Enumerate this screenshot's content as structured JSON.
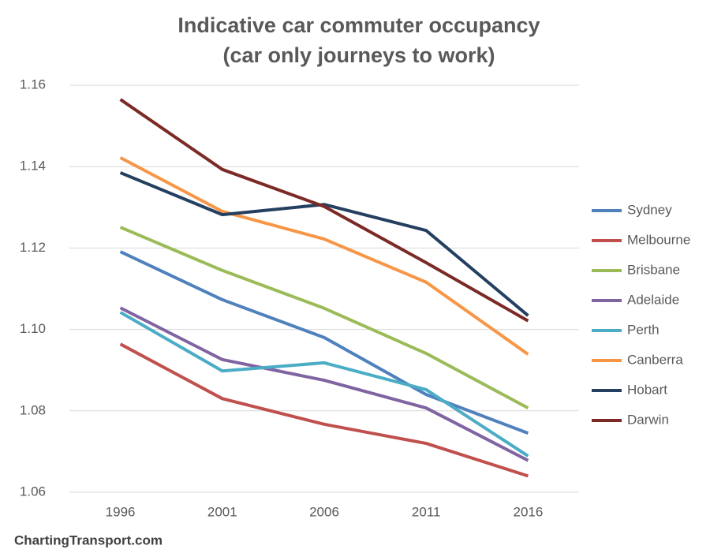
{
  "chart_data": {
    "type": "line",
    "title": "Indicative car commuter occupancy",
    "subtitle": "(car only journeys to work)",
    "source": "ChartingTransport.com",
    "categories": [
      "1996",
      "2001",
      "2006",
      "2011",
      "2016"
    ],
    "ylim": [
      1.06,
      1.16
    ],
    "yticks": [
      1.06,
      1.08,
      {
        "value": 1.1,
        "label": "1.10"
      },
      1.12,
      1.14,
      1.16
    ],
    "grid": true,
    "legend": "right",
    "series": [
      {
        "name": "Sydney",
        "color": "#4f81bd",
        "values": [
          1.1191,
          1.1073,
          1.098,
          1.084,
          1.0745
        ]
      },
      {
        "name": "Melbourne",
        "color": "#c0504d",
        "values": [
          1.0964,
          1.083,
          1.0767,
          1.072,
          1.064
        ]
      },
      {
        "name": "Brisbane",
        "color": "#9bbb59",
        "values": [
          1.1251,
          1.1145,
          1.1052,
          1.0941,
          1.0807
        ]
      },
      {
        "name": "Adelaide",
        "color": "#8064a2",
        "values": [
          1.1053,
          1.0926,
          1.0875,
          1.0807,
          1.0678
        ]
      },
      {
        "name": "Perth",
        "color": "#4bacc6",
        "values": [
          1.1042,
          1.0898,
          1.0918,
          1.0852,
          1.0689
        ]
      },
      {
        "name": "Canberra",
        "color": "#f79646",
        "values": [
          1.1422,
          1.129,
          1.1222,
          1.1116,
          1.0939
        ]
      },
      {
        "name": "Hobart",
        "color": "#243f60",
        "values": [
          1.1385,
          1.1282,
          1.1307,
          1.1243,
          1.1034
        ]
      },
      {
        "name": "Darwin",
        "color": "#7b2a26",
        "values": [
          1.1565,
          1.1393,
          1.1302,
          1.1164,
          1.1021
        ]
      }
    ]
  }
}
